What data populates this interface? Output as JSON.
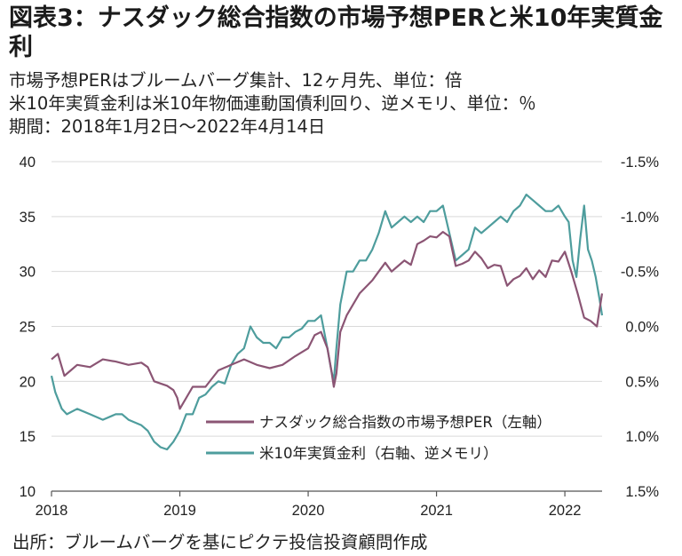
{
  "title": "図表3：ナスダック総合指数の市場予想PERと米10年実質金利",
  "subtitles": [
    "市場予想PERはブルームバーグ集計、12ヶ月先、単位：倍",
    "米10年実質金利は米10年物価連動国債利回り、逆メモリ、単位：％",
    "期間：2018年1月2日～2022年4月14日"
  ],
  "source": "出所：ブルームバーグを基にピクテ投信投資顧問作成",
  "colors": {
    "per": "#8B5574",
    "real_yield": "#4E9D9D",
    "grid": "#d9d9d9",
    "axis": "#555555"
  },
  "chart_data": {
    "type": "line",
    "x_ticks": [
      "2018",
      "2019",
      "2020",
      "2021",
      "2022"
    ],
    "left_axis": {
      "ticks": [
        "40",
        "35",
        "30",
        "25",
        "20",
        "15",
        "10"
      ],
      "range": [
        10,
        40
      ]
    },
    "right_axis": {
      "ticks": [
        "-1.5%",
        "-1.0%",
        "-0.5%",
        "0.0%",
        "0.5%",
        "1.0%",
        "1.5%"
      ],
      "range": [
        1.5,
        -1.5
      ],
      "inverted": true
    },
    "legend_position": "lower-right",
    "grid": true,
    "series": [
      {
        "name": "ナスダック総合指数の市場予想PER（左軸）",
        "axis": "left",
        "x": [
          2018.0,
          2018.05,
          2018.1,
          2018.15,
          2018.2,
          2018.3,
          2018.4,
          2018.5,
          2018.6,
          2018.7,
          2018.75,
          2018.8,
          2018.85,
          2018.9,
          2018.95,
          2018.98,
          2019.0,
          2019.1,
          2019.2,
          2019.3,
          2019.4,
          2019.5,
          2019.6,
          2019.7,
          2019.8,
          2019.9,
          2020.0,
          2020.05,
          2020.1,
          2020.15,
          2020.18,
          2020.2,
          2020.22,
          2020.25,
          2020.3,
          2020.35,
          2020.4,
          2020.45,
          2020.5,
          2020.55,
          2020.6,
          2020.65,
          2020.7,
          2020.75,
          2020.8,
          2020.85,
          2020.9,
          2020.95,
          2021.0,
          2021.05,
          2021.1,
          2021.15,
          2021.2,
          2021.25,
          2021.3,
          2021.35,
          2021.4,
          2021.45,
          2021.5,
          2021.55,
          2021.6,
          2021.65,
          2021.7,
          2021.75,
          2021.8,
          2021.85,
          2021.9,
          2021.95,
          2022.0,
          2022.05,
          2022.1,
          2022.15,
          2022.2,
          2022.25,
          2022.29
        ],
        "values": [
          22,
          22.5,
          20.5,
          21,
          21.5,
          21.3,
          22,
          21.8,
          21.5,
          21.7,
          21.3,
          20,
          19.8,
          19.6,
          19.2,
          18.5,
          17.5,
          19.5,
          19.5,
          21,
          21.5,
          22,
          21.5,
          21.2,
          21.5,
          22.3,
          23,
          24.2,
          24.5,
          23,
          21,
          19.5,
          20.7,
          24.5,
          26,
          27,
          28,
          28.6,
          29.2,
          30,
          30.8,
          30,
          30.5,
          31,
          30.6,
          32.5,
          32.8,
          33.2,
          33.1,
          33.6,
          33.2,
          30.5,
          30.7,
          31,
          31.8,
          31.2,
          30.3,
          30.6,
          30.5,
          28.7,
          29.3,
          29.6,
          30.3,
          29.3,
          30.1,
          29.5,
          31,
          30.9,
          31.8,
          30,
          28,
          25.8,
          25.5,
          25,
          28
        ],
        "color": "#8B5574"
      },
      {
        "name": "米10年実質金利（右軸、逆メモリ）",
        "axis": "right",
        "x": [
          2018.0,
          2018.03,
          2018.08,
          2018.12,
          2018.2,
          2018.3,
          2018.4,
          2018.5,
          2018.55,
          2018.6,
          2018.7,
          2018.75,
          2018.8,
          2018.85,
          2018.9,
          2018.95,
          2019.0,
          2019.05,
          2019.1,
          2019.15,
          2019.2,
          2019.25,
          2019.3,
          2019.35,
          2019.4,
          2019.45,
          2019.5,
          2019.55,
          2019.6,
          2019.65,
          2019.7,
          2019.75,
          2019.8,
          2019.85,
          2019.9,
          2019.95,
          2020.0,
          2020.05,
          2020.1,
          2020.15,
          2020.18,
          2020.2,
          2020.22,
          2020.25,
          2020.3,
          2020.35,
          2020.4,
          2020.45,
          2020.5,
          2020.55,
          2020.6,
          2020.65,
          2020.7,
          2020.75,
          2020.8,
          2020.85,
          2020.9,
          2020.95,
          2021.0,
          2021.05,
          2021.1,
          2021.15,
          2021.2,
          2021.25,
          2021.3,
          2021.35,
          2021.4,
          2021.45,
          2021.5,
          2021.55,
          2021.6,
          2021.65,
          2021.7,
          2021.75,
          2021.8,
          2021.85,
          2021.9,
          2021.95,
          2022.0,
          2022.03,
          2022.06,
          2022.09,
          2022.12,
          2022.15,
          2022.18,
          2022.21,
          2022.24,
          2022.27,
          2022.29
        ],
        "values": [
          0.45,
          0.6,
          0.75,
          0.8,
          0.75,
          0.8,
          0.85,
          0.8,
          0.8,
          0.85,
          0.9,
          0.95,
          1.05,
          1.1,
          1.12,
          1.05,
          0.95,
          0.8,
          0.8,
          0.65,
          0.62,
          0.55,
          0.5,
          0.52,
          0.35,
          0.25,
          0.2,
          0.0,
          0.1,
          0.15,
          0.15,
          0.2,
          0.1,
          0.1,
          0.05,
          0.02,
          -0.05,
          -0.05,
          -0.1,
          0.2,
          0.4,
          0.5,
          0.2,
          -0.2,
          -0.5,
          -0.5,
          -0.6,
          -0.6,
          -0.7,
          -0.85,
          -1.05,
          -0.9,
          -0.95,
          -1.0,
          -0.95,
          -1.0,
          -0.95,
          -1.05,
          -1.05,
          -1.1,
          -0.85,
          -0.6,
          -0.65,
          -0.7,
          -0.9,
          -0.85,
          -0.9,
          -0.95,
          -1.0,
          -0.95,
          -1.05,
          -1.1,
          -1.2,
          -1.15,
          -1.1,
          -1.05,
          -1.05,
          -1.1,
          -1.0,
          -0.95,
          -0.6,
          -0.45,
          -0.8,
          -1.1,
          -0.7,
          -0.6,
          -0.45,
          -0.25,
          -0.1
        ],
        "color": "#4E9D9D"
      }
    ]
  }
}
